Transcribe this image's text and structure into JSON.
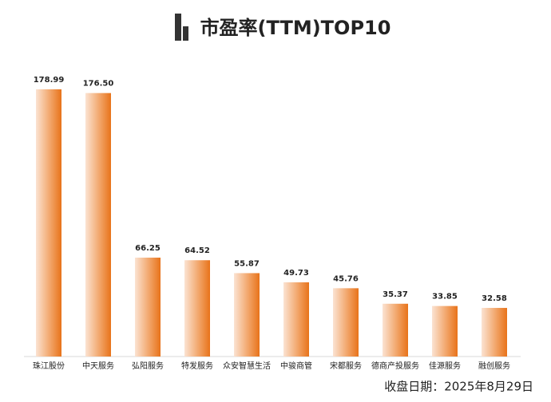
{
  "chart_data": {
    "type": "bar",
    "title": "市盈率(TTM)TOP10",
    "categories": [
      "珠江股份",
      "中天服务",
      "弘阳服务",
      "特发服务",
      "众安智慧生活",
      "中骏商管",
      "宋都服务",
      "德商产投服务",
      "佳源服务",
      "融创服务"
    ],
    "values": [
      178.99,
      176.5,
      66.25,
      64.52,
      55.87,
      49.73,
      45.76,
      35.37,
      33.85,
      32.58
    ],
    "value_labels": [
      "178.99",
      "176.50",
      "66.25",
      "64.52",
      "55.87",
      "49.73",
      "45.76",
      "35.37",
      "33.85",
      "32.58"
    ],
    "color": "#e8731a",
    "footnote": "收盘日期：2025年8月29日"
  }
}
